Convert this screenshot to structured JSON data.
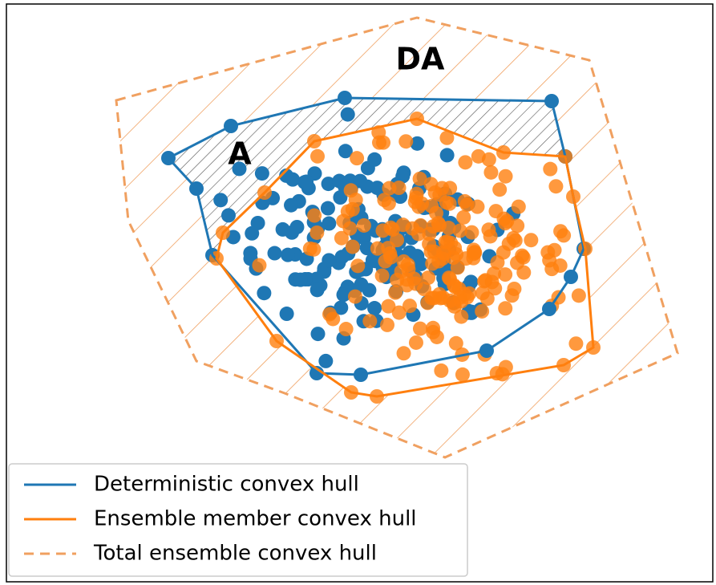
{
  "labels": {
    "da": "DA",
    "a": "A"
  },
  "legend": [
    {
      "label": "Deterministic convex hull"
    },
    {
      "label": "Ensemble member convex hull"
    },
    {
      "label": "Total ensemble convex hull"
    }
  ]
}
